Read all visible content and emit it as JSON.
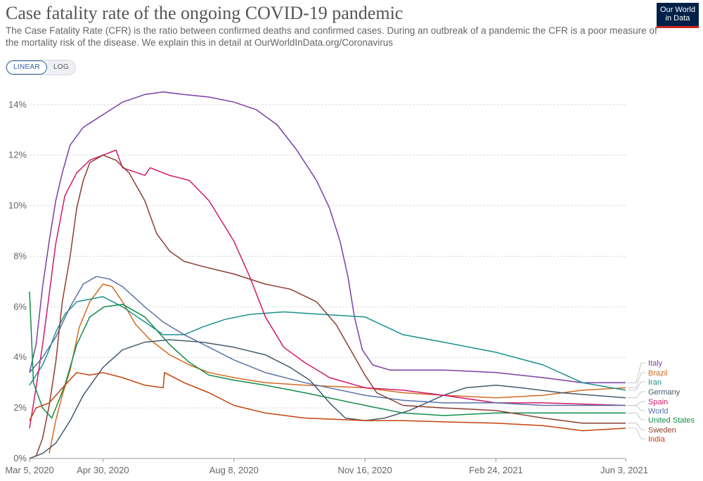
{
  "header": {
    "title": "Case fatality rate of the ongoing COVID-19 pandemic",
    "subtitle": "The Case Fatality Rate (CFR) is the ratio between confirmed deaths and confirmed cases. During an outbreak of a pandemic the CFR is a poor measure of the mortality risk of the disease. We explain this in detail at OurWorldInData.org/Coronavirus",
    "logo_line1": "Our World",
    "logo_line2": "in Data"
  },
  "scale_toggle": {
    "linear_label": "LINEAR",
    "log_label": "LOG",
    "selected": "LINEAR"
  },
  "colors": {
    "Italy": "#7b3fa6",
    "Brazil": "#d26b1f",
    "Iran": "#19908c",
    "Germany": "#445a6e",
    "Spain": "#d0186d",
    "World": "#5a72a8",
    "United States": "#128c4a",
    "Sweden": "#8c3e31",
    "India": "#c2410c"
  },
  "chart_data": {
    "type": "line",
    "title": "Case fatality rate of the ongoing COVID-19 pandemic",
    "xlabel": "",
    "ylabel": "",
    "x_ticks": [
      "Mar 5, 2020",
      "Apr 30, 2020",
      "Aug 8, 2020",
      "Nov 16, 2020",
      "Feb 24, 2021",
      "Jun 3, 2021"
    ],
    "y_ticks": [
      "0%",
      "2%",
      "4%",
      "6%",
      "8%",
      "10%",
      "12%",
      "14%"
    ],
    "ylim": [
      0,
      14.8
    ],
    "xlim": [
      "2020-03-05",
      "2021-06-03"
    ],
    "scale": "linear",
    "grid": "horizontal dashed",
    "legend": "right, labels at line ends",
    "series": [
      {
        "name": "Italy",
        "points": [
          [
            "2020-03-05",
            3.4
          ],
          [
            "2020-03-10",
            4.5
          ],
          [
            "2020-03-15",
            6.8
          ],
          [
            "2020-03-20",
            8.6
          ],
          [
            "2020-03-25",
            10.2
          ],
          [
            "2020-03-30",
            11.3
          ],
          [
            "2020-04-05",
            12.4
          ],
          [
            "2020-04-15",
            13.1
          ],
          [
            "2020-04-30",
            13.6
          ],
          [
            "2020-05-15",
            14.1
          ],
          [
            "2020-06-01",
            14.4
          ],
          [
            "2020-06-15",
            14.5
          ],
          [
            "2020-07-01",
            14.4
          ],
          [
            "2020-07-20",
            14.3
          ],
          [
            "2020-08-08",
            14.1
          ],
          [
            "2020-08-25",
            13.8
          ],
          [
            "2020-09-10",
            13.2
          ],
          [
            "2020-09-25",
            12.2
          ],
          [
            "2020-10-10",
            11.0
          ],
          [
            "2020-10-20",
            9.9
          ],
          [
            "2020-10-28",
            8.6
          ],
          [
            "2020-11-03",
            7.2
          ],
          [
            "2020-11-08",
            5.6
          ],
          [
            "2020-11-14",
            4.3
          ],
          [
            "2020-11-22",
            3.7
          ],
          [
            "2020-12-05",
            3.5
          ],
          [
            "2020-12-20",
            3.5
          ],
          [
            "2021-01-15",
            3.5
          ],
          [
            "2021-02-24",
            3.4
          ],
          [
            "2021-04-01",
            3.2
          ],
          [
            "2021-05-01",
            3.0
          ],
          [
            "2021-06-03",
            3.0
          ]
        ]
      },
      {
        "name": "Brazil",
        "points": [
          [
            "2020-03-20",
            0.2
          ],
          [
            "2020-03-25",
            1.5
          ],
          [
            "2020-03-30",
            2.5
          ],
          [
            "2020-04-05",
            3.5
          ],
          [
            "2020-04-12",
            5.2
          ],
          [
            "2020-04-20",
            6.2
          ],
          [
            "2020-04-30",
            6.9
          ],
          [
            "2020-05-07",
            6.8
          ],
          [
            "2020-05-15",
            6.2
          ],
          [
            "2020-05-25",
            5.3
          ],
          [
            "2020-06-05",
            4.7
          ],
          [
            "2020-06-20",
            4.1
          ],
          [
            "2020-07-05",
            3.7
          ],
          [
            "2020-07-20",
            3.4
          ],
          [
            "2020-08-08",
            3.2
          ],
          [
            "2020-09-01",
            3.0
          ],
          [
            "2020-10-01",
            2.9
          ],
          [
            "2020-11-16",
            2.8
          ],
          [
            "2020-12-15",
            2.6
          ],
          [
            "2021-01-15",
            2.5
          ],
          [
            "2021-02-24",
            2.4
          ],
          [
            "2021-04-01",
            2.5
          ],
          [
            "2021-05-01",
            2.7
          ],
          [
            "2021-06-03",
            2.8
          ]
        ]
      },
      {
        "name": "Iran",
        "points": [
          [
            "2020-03-05",
            2.9
          ],
          [
            "2020-03-10",
            3.3
          ],
          [
            "2020-03-15",
            3.7
          ],
          [
            "2020-03-20",
            4.3
          ],
          [
            "2020-03-25",
            5.0
          ],
          [
            "2020-04-01",
            5.7
          ],
          [
            "2020-04-10",
            6.2
          ],
          [
            "2020-04-30",
            6.4
          ],
          [
            "2020-05-15",
            6.0
          ],
          [
            "2020-06-01",
            5.4
          ],
          [
            "2020-06-15",
            4.9
          ],
          [
            "2020-07-01",
            4.9
          ],
          [
            "2020-07-15",
            5.2
          ],
          [
            "2020-08-01",
            5.5
          ],
          [
            "2020-08-20",
            5.7
          ],
          [
            "2020-09-15",
            5.8
          ],
          [
            "2020-10-15",
            5.7
          ],
          [
            "2020-11-16",
            5.6
          ],
          [
            "2020-12-15",
            4.9
          ],
          [
            "2021-01-15",
            4.6
          ],
          [
            "2021-02-24",
            4.2
          ],
          [
            "2021-04-01",
            3.7
          ],
          [
            "2021-05-01",
            3.0
          ],
          [
            "2021-06-03",
            2.7
          ]
        ]
      },
      {
        "name": "Germany",
        "points": [
          [
            "2020-03-05",
            0.0
          ],
          [
            "2020-03-15",
            0.2
          ],
          [
            "2020-03-25",
            0.6
          ],
          [
            "2020-04-05",
            1.5
          ],
          [
            "2020-04-15",
            2.5
          ],
          [
            "2020-04-30",
            3.6
          ],
          [
            "2020-05-15",
            4.3
          ],
          [
            "2020-06-01",
            4.6
          ],
          [
            "2020-06-20",
            4.7
          ],
          [
            "2020-07-15",
            4.6
          ],
          [
            "2020-08-08",
            4.4
          ],
          [
            "2020-09-01",
            4.1
          ],
          [
            "2020-09-20",
            3.6
          ],
          [
            "2020-10-05",
            3.1
          ],
          [
            "2020-10-20",
            2.2
          ],
          [
            "2020-11-01",
            1.6
          ],
          [
            "2020-11-16",
            1.5
          ],
          [
            "2020-12-01",
            1.6
          ],
          [
            "2020-12-20",
            1.9
          ],
          [
            "2021-01-15",
            2.5
          ],
          [
            "2021-02-01",
            2.8
          ],
          [
            "2021-02-24",
            2.9
          ],
          [
            "2021-03-15",
            2.8
          ],
          [
            "2021-04-15",
            2.6
          ],
          [
            "2021-06-03",
            2.4
          ]
        ]
      },
      {
        "name": "Spain",
        "points": [
          [
            "2020-03-05",
            1.2
          ],
          [
            "2020-03-10",
            2.8
          ],
          [
            "2020-03-15",
            4.5
          ],
          [
            "2020-03-20",
            6.5
          ],
          [
            "2020-03-25",
            8.5
          ],
          [
            "2020-04-01",
            10.4
          ],
          [
            "2020-04-10",
            11.3
          ],
          [
            "2020-04-20",
            11.8
          ],
          [
            "2020-04-30",
            12.0
          ],
          [
            "2020-05-10",
            12.2
          ],
          [
            "2020-05-15",
            11.5
          ],
          [
            "2020-06-01",
            11.2
          ],
          [
            "2020-06-05",
            11.5
          ],
          [
            "2020-06-20",
            11.2
          ],
          [
            "2020-07-05",
            11.0
          ],
          [
            "2020-07-20",
            10.2
          ],
          [
            "2020-08-08",
            8.6
          ],
          [
            "2020-08-20",
            7.2
          ],
          [
            "2020-09-01",
            5.6
          ],
          [
            "2020-09-15",
            4.4
          ],
          [
            "2020-10-01",
            3.8
          ],
          [
            "2020-10-20",
            3.2
          ],
          [
            "2020-11-16",
            2.8
          ],
          [
            "2020-12-15",
            2.7
          ],
          [
            "2021-01-15",
            2.5
          ],
          [
            "2021-02-24",
            2.2
          ],
          [
            "2021-04-01",
            2.2
          ],
          [
            "2021-06-03",
            2.1
          ]
        ]
      },
      {
        "name": "World",
        "points": [
          [
            "2020-03-05",
            3.4
          ],
          [
            "2020-03-15",
            4.0
          ],
          [
            "2020-03-25",
            4.8
          ],
          [
            "2020-04-05",
            6.0
          ],
          [
            "2020-04-15",
            6.9
          ],
          [
            "2020-04-25",
            7.2
          ],
          [
            "2020-05-05",
            7.1
          ],
          [
            "2020-05-15",
            6.8
          ],
          [
            "2020-06-01",
            6.0
          ],
          [
            "2020-06-15",
            5.4
          ],
          [
            "2020-07-01",
            4.9
          ],
          [
            "2020-07-20",
            4.4
          ],
          [
            "2020-08-08",
            3.9
          ],
          [
            "2020-09-01",
            3.4
          ],
          [
            "2020-10-01",
            3.0
          ],
          [
            "2020-11-16",
            2.5
          ],
          [
            "2020-12-15",
            2.3
          ],
          [
            "2021-01-15",
            2.2
          ],
          [
            "2021-02-24",
            2.2
          ],
          [
            "2021-04-01",
            2.1
          ],
          [
            "2021-06-03",
            2.1
          ]
        ]
      },
      {
        "name": "United States",
        "points": [
          [
            "2020-03-05",
            6.6
          ],
          [
            "2020-03-08",
            3.0
          ],
          [
            "2020-03-15",
            2.0
          ],
          [
            "2020-03-22",
            1.6
          ],
          [
            "2020-04-01",
            2.9
          ],
          [
            "2020-04-10",
            4.5
          ],
          [
            "2020-04-20",
            5.6
          ],
          [
            "2020-05-01",
            6.0
          ],
          [
            "2020-05-15",
            6.1
          ],
          [
            "2020-06-01",
            5.6
          ],
          [
            "2020-06-20",
            4.5
          ],
          [
            "2020-07-05",
            3.8
          ],
          [
            "2020-07-20",
            3.3
          ],
          [
            "2020-08-08",
            3.1
          ],
          [
            "2020-09-01",
            2.9
          ],
          [
            "2020-10-01",
            2.6
          ],
          [
            "2020-11-16",
            2.1
          ],
          [
            "2020-12-15",
            1.8
          ],
          [
            "2021-01-15",
            1.7
          ],
          [
            "2021-02-24",
            1.8
          ],
          [
            "2021-04-01",
            1.8
          ],
          [
            "2021-06-03",
            1.8
          ]
        ]
      },
      {
        "name": "Sweden",
        "points": [
          [
            "2020-03-10",
            0.1
          ],
          [
            "2020-03-15",
            0.8
          ],
          [
            "2020-03-20",
            2.1
          ],
          [
            "2020-03-25",
            3.8
          ],
          [
            "2020-03-30",
            6.2
          ],
          [
            "2020-04-05",
            8.0
          ],
          [
            "2020-04-10",
            9.9
          ],
          [
            "2020-04-15",
            11.0
          ],
          [
            "2020-04-20",
            11.7
          ],
          [
            "2020-04-30",
            12.0
          ],
          [
            "2020-05-10",
            11.8
          ],
          [
            "2020-05-20",
            11.3
          ],
          [
            "2020-06-01",
            10.2
          ],
          [
            "2020-06-10",
            8.9
          ],
          [
            "2020-06-20",
            8.2
          ],
          [
            "2020-07-01",
            7.8
          ],
          [
            "2020-07-15",
            7.6
          ],
          [
            "2020-08-08",
            7.3
          ],
          [
            "2020-09-01",
            6.9
          ],
          [
            "2020-09-20",
            6.7
          ],
          [
            "2020-10-10",
            6.2
          ],
          [
            "2020-10-25",
            5.3
          ],
          [
            "2020-11-05",
            4.3
          ],
          [
            "2020-11-16",
            3.3
          ],
          [
            "2020-11-25",
            2.6
          ],
          [
            "2020-12-15",
            2.1
          ],
          [
            "2021-01-15",
            2.0
          ],
          [
            "2021-02-24",
            1.9
          ],
          [
            "2021-04-01",
            1.6
          ],
          [
            "2021-05-01",
            1.4
          ],
          [
            "2021-06-03",
            1.4
          ]
        ]
      },
      {
        "name": "India",
        "points": [
          [
            "2020-03-05",
            1.5
          ],
          [
            "2020-03-10",
            2.0
          ],
          [
            "2020-03-20",
            2.2
          ],
          [
            "2020-04-01",
            2.9
          ],
          [
            "2020-04-10",
            3.4
          ],
          [
            "2020-04-20",
            3.3
          ],
          [
            "2020-04-30",
            3.4
          ],
          [
            "2020-05-15",
            3.2
          ],
          [
            "2020-06-01",
            2.9
          ],
          [
            "2020-06-15",
            2.8
          ],
          [
            "2020-06-16",
            3.4
          ],
          [
            "2020-07-01",
            3.0
          ],
          [
            "2020-07-20",
            2.6
          ],
          [
            "2020-08-08",
            2.1
          ],
          [
            "2020-09-01",
            1.8
          ],
          [
            "2020-10-01",
            1.6
          ],
          [
            "2020-11-16",
            1.5
          ],
          [
            "2020-12-15",
            1.5
          ],
          [
            "2021-01-15",
            1.45
          ],
          [
            "2021-02-24",
            1.4
          ],
          [
            "2021-04-01",
            1.3
          ],
          [
            "2021-05-01",
            1.1
          ],
          [
            "2021-06-03",
            1.2
          ]
        ]
      }
    ]
  }
}
